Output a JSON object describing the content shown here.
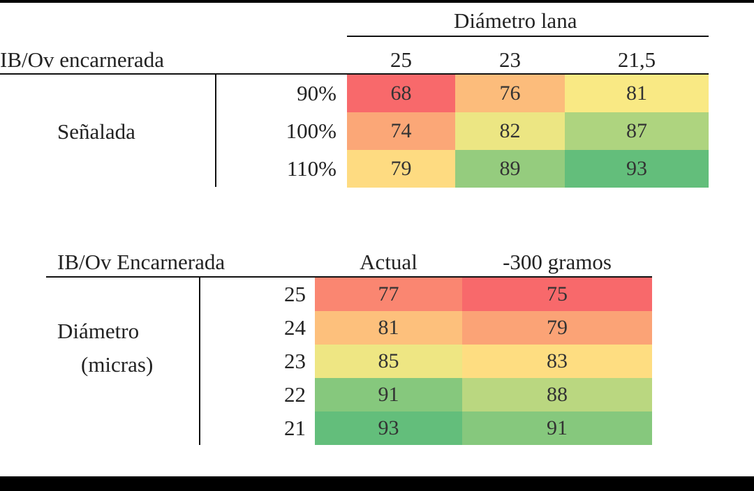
{
  "chart_data": [
    {
      "type": "heatmap",
      "corner_label": "IB/Ov encarnerada",
      "column_group_label": "Diámetro lana",
      "row_group_label": "Señalada",
      "columns": [
        "25",
        "23",
        "21,5"
      ],
      "rows": [
        "90%",
        "100%",
        "110%"
      ],
      "values": [
        [
          68,
          76,
          81
        ],
        [
          74,
          82,
          87
        ],
        [
          79,
          89,
          93
        ]
      ],
      "color_scale": {
        "low": "#f8696b",
        "mid": "#ffeb84",
        "high": "#63be7b"
      }
    },
    {
      "type": "heatmap",
      "corner_label": "IB/Ov Encarnerada",
      "row_group_label": [
        "Diámetro",
        "(micras)"
      ],
      "columns": [
        "Actual",
        "-300 gramos"
      ],
      "rows": [
        "25",
        "24",
        "23",
        "22",
        "21"
      ],
      "values": [
        [
          77,
          75
        ],
        [
          81,
          79
        ],
        [
          85,
          83
        ],
        [
          91,
          88
        ],
        [
          93,
          91
        ]
      ],
      "color_scale": {
        "low": "#f8696b",
        "mid": "#ffeb84",
        "high": "#63be7b"
      }
    }
  ]
}
